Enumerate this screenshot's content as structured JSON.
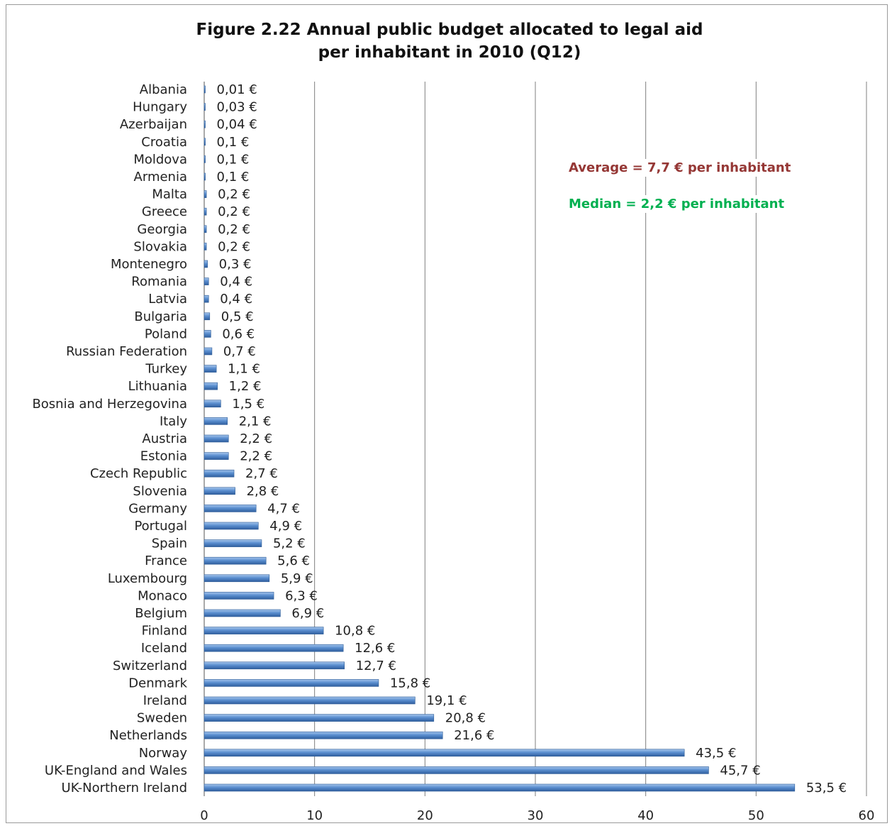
{
  "chart_data": {
    "type": "bar",
    "orientation": "horizontal",
    "title_lines": [
      "Figure 2.22 Annual public budget allocated to legal aid",
      "per inhabitant in 2010 (Q12)"
    ],
    "categories": [
      "Albania",
      "Hungary",
      "Azerbaijan",
      "Croatia",
      "Moldova",
      "Armenia",
      "Malta",
      "Greece",
      "Georgia",
      "Slovakia",
      "Montenegro",
      "Romania",
      "Latvia",
      "Bulgaria",
      "Poland",
      "Russian Federation",
      "Turkey",
      "Lithuania",
      "Bosnia and Herzegovina",
      "Italy",
      "Austria",
      "Estonia",
      "Czech Republic",
      "Slovenia",
      "Germany",
      "Portugal",
      "Spain",
      "France",
      "Luxembourg",
      "Monaco",
      "Belgium",
      "Finland",
      "Iceland",
      "Switzerland",
      "Denmark",
      "Ireland",
      "Sweden",
      "Netherlands",
      "Norway",
      "UK-England and Wales",
      "UK-Northern Ireland"
    ],
    "values": [
      0.01,
      0.03,
      0.04,
      0.1,
      0.1,
      0.1,
      0.2,
      0.2,
      0.2,
      0.2,
      0.3,
      0.4,
      0.4,
      0.5,
      0.6,
      0.7,
      1.1,
      1.2,
      1.5,
      2.1,
      2.2,
      2.2,
      2.7,
      2.8,
      4.7,
      4.9,
      5.2,
      5.6,
      5.9,
      6.3,
      6.9,
      10.8,
      12.6,
      12.7,
      15.8,
      19.1,
      20.8,
      21.6,
      43.5,
      45.7,
      53.5
    ],
    "value_labels": [
      "0,01 €",
      "0,03 €",
      "0,04 €",
      "0,1 €",
      "0,1 €",
      "0,1 €",
      "0,2 €",
      "0,2 €",
      "0,2 €",
      "0,2 €",
      "0,3 €",
      "0,4 €",
      "0,4 €",
      "0,5 €",
      "0,6 €",
      "0,7 €",
      "1,1 €",
      "1,2 €",
      "1,5 €",
      "2,1 €",
      "2,2 €",
      "2,2 €",
      "2,7 €",
      "2,8 €",
      "4,7 €",
      "4,9 €",
      "5,2 €",
      "5,6 €",
      "5,9 €",
      "6,3 €",
      "6,9 €",
      "10,8 €",
      "12,6 €",
      "12,7 €",
      "15,8 €",
      "19,1 €",
      "20,8 €",
      "21,6 €",
      "43,5 €",
      "45,7 €",
      "53,5 €"
    ],
    "xlim": [
      0,
      60
    ],
    "x_ticks": [
      "0",
      "10",
      "20",
      "30",
      "40",
      "50",
      "60"
    ],
    "grid": "vertical",
    "legend": "none",
    "annotations": [
      {
        "text": "Average = 7,7 € per inhabitant",
        "color": "#953735"
      },
      {
        "text": "Median = 2,2 € per inhabitant",
        "color": "#00b050"
      }
    ],
    "bar_color": "#4f81bd"
  }
}
